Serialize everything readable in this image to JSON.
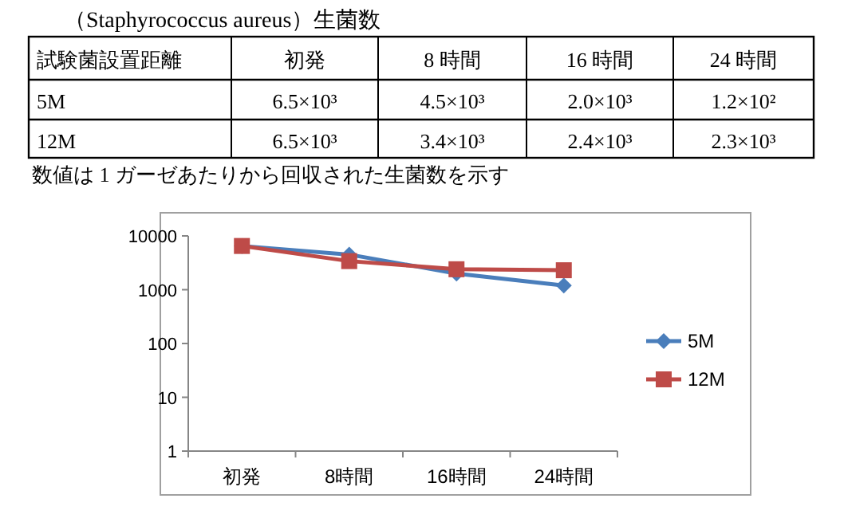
{
  "chart_data": [
    {
      "type": "other",
      "title": "（Staphyrococcus aureus）生菌数",
      "annotations": [
        "試験菌設置距離",
        "初発",
        "8 時間",
        "16 時間",
        "24 時間",
        "5M",
        "6.5×10³",
        "4.5×10³",
        "2.0×10³",
        "1.2×10²",
        "12M",
        "6.5×10³",
        "3.4×10³",
        "2.4×10³",
        "2.3×10³",
        "数値は 1 ガーゼあたりから回収された生菌数を示す"
      ]
    },
    {
      "type": "line",
      "categories": [
        "初発",
        "8時間",
        "16時間",
        "24時間"
      ],
      "series": [
        {
          "name": "5M",
          "color": "#4a7ebb",
          "marker": "diamond",
          "values": [
            6500,
            4500,
            2000,
            1200
          ]
        },
        {
          "name": "12M",
          "color": "#be4b48",
          "marker": "square",
          "values": [
            6500,
            3400,
            2400,
            2300
          ]
        }
      ],
      "log": true,
      "ylim": [
        1,
        10000
      ],
      "yticks": [
        1,
        10,
        100,
        1000,
        10000
      ],
      "legend": "right"
    }
  ]
}
